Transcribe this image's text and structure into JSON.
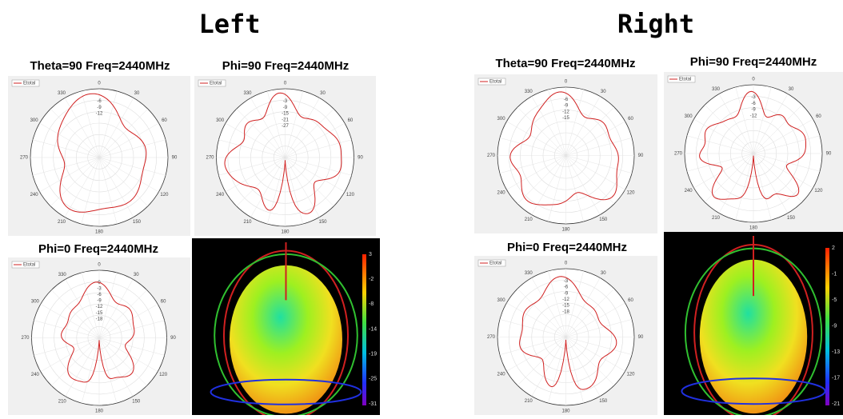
{
  "legend_label": "Etotal",
  "angle_labels": [
    "0",
    "30",
    "60",
    "90",
    "120",
    "150",
    "180",
    "210",
    "240",
    "270",
    "300",
    "330"
  ],
  "left": {
    "title": "Left",
    "plots": [
      {
        "caption": "Theta=90 Freq=2440MHz",
        "radial_labels": [
          "-6",
          "-9",
          "-12"
        ]
      },
      {
        "caption": "Phi=90 Freq=2440MHz",
        "radial_labels": [
          "-3",
          "-9",
          "-15",
          "-21",
          "-27"
        ]
      },
      {
        "caption": "Phi=0 Freq=2440MHz",
        "radial_labels": [
          "0",
          "-3",
          "-6",
          "-9",
          "-12",
          "-15",
          "-18"
        ]
      }
    ],
    "colorbar_labels": [
      "3",
      "-2",
      "-8",
      "-14",
      "-19",
      "-25",
      "-31"
    ]
  },
  "right": {
    "title": "Right",
    "plots": [
      {
        "caption": "Theta=90 Freq=2440MHz",
        "radial_labels": [
          "-6",
          "-9",
          "-12",
          "-15"
        ]
      },
      {
        "caption": "Phi=90 Freq=2440MHz",
        "radial_labels": [
          "-3",
          "-6",
          "-9",
          "-12"
        ]
      },
      {
        "caption": "Phi=0 Freq=2440MHz",
        "radial_labels": [
          "-3",
          "-6",
          "-9",
          "-12",
          "-15",
          "-18"
        ]
      }
    ],
    "colorbar_labels": [
      "2",
      "-1",
      "-5",
      "-9",
      "-13",
      "-17",
      "-21"
    ]
  }
}
